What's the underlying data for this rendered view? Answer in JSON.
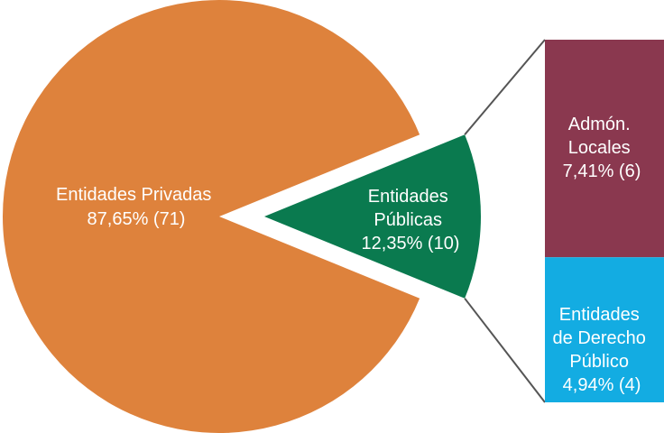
{
  "chart_data": {
    "type": "pie",
    "variant": "bar-of-pie",
    "main": [
      {
        "name": "Entidades Privadas",
        "percent": 87.65,
        "count": 71,
        "value_label": "87,65% (71)",
        "color": "#DE823C"
      },
      {
        "name": "Entidades Públicas",
        "percent": 12.35,
        "count": 10,
        "value_label": "12,35% (10)",
        "color": "#0A7A4F"
      }
    ],
    "breakdown_of": "Entidades Públicas",
    "breakdown": [
      {
        "name": "Admón. Locales",
        "percent": 7.41,
        "count": 6,
        "value_label": "7,41% (6)",
        "color": "#8A384F"
      },
      {
        "name": "Entidades de Derecho Público",
        "percent": 4.94,
        "count": 4,
        "value_label": "4,94% (4)",
        "color": "#13ACE2"
      }
    ],
    "connector_color": "#555555",
    "labels": {
      "privadas": [
        "Entidades Privadas",
        "87,65% (71)"
      ],
      "publicas": [
        "Entidades",
        "Públicas",
        "12,35% (10)"
      ],
      "locales": [
        "Admón.",
        "Locales",
        "7,41% (6)"
      ],
      "derecho": [
        "Entidades",
        "de Derecho",
        "Público",
        "4,94% (4)"
      ]
    }
  }
}
